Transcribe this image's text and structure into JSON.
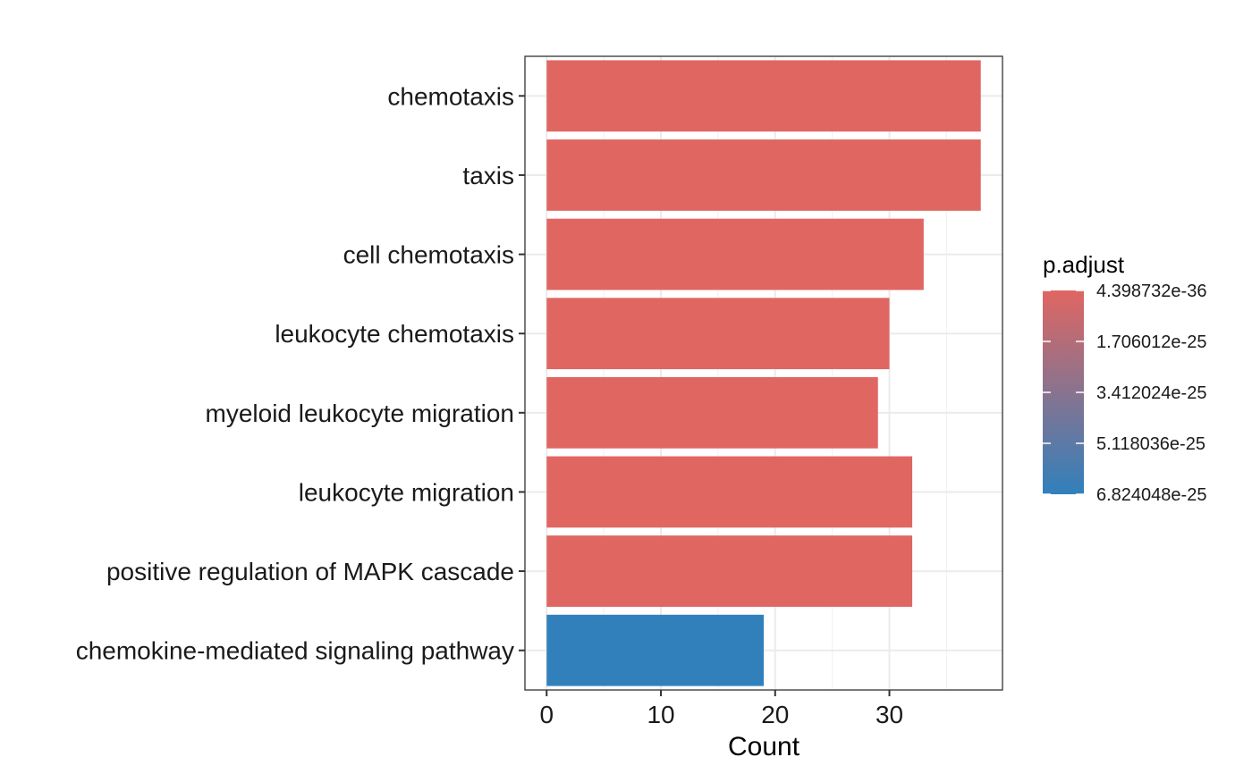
{
  "chart_data": {
    "type": "bar",
    "orientation": "horizontal",
    "categories": [
      "chemotaxis",
      "taxis",
      "cell chemotaxis",
      "leukocyte chemotaxis",
      "myeloid leukocyte migration",
      "leukocyte migration",
      "positive regulation of MAPK cascade",
      "chemokine-mediated signaling pathway"
    ],
    "values": [
      38,
      38,
      33,
      30,
      29,
      32,
      32,
      19
    ],
    "p_adjust": [
      4.4e-36,
      4.4e-36,
      4.4e-36,
      4.4e-36,
      4.4e-36,
      4.4e-36,
      4.4e-36,
      6.824048e-25
    ],
    "xlabel": "Count",
    "ylabel": "",
    "xlim": [
      -1.9,
      39.9
    ],
    "xticks": [
      "0",
      "10",
      "20",
      "30"
    ],
    "grid": true,
    "legend": {
      "title": "p.adjust",
      "placement": "right",
      "labels": [
        "4.398732e-36",
        "1.706012e-25",
        "3.412024e-25",
        "5.118036e-25",
        "6.824048e-25"
      ],
      "color_low": "#e06662",
      "color_high": "#3180bc"
    }
  }
}
